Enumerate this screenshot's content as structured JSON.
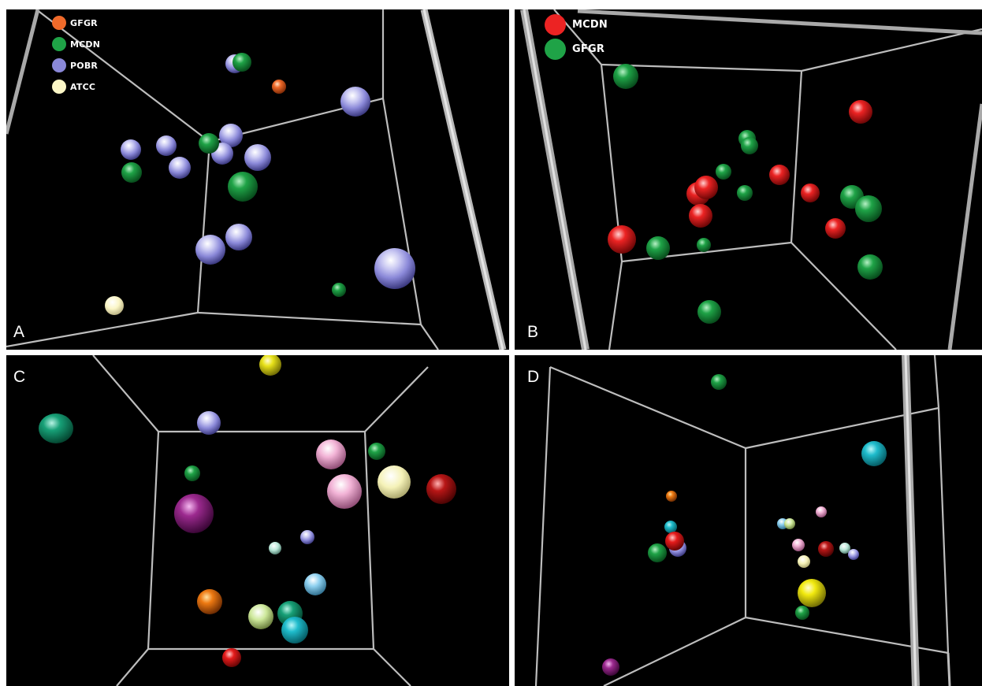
{
  "panels": [
    {
      "label": "A",
      "legend": [
        {
          "label": "GFGR",
          "color": "#ef6a2a"
        },
        {
          "label": "MCDN",
          "color": "#1fa347"
        },
        {
          "label": "POBR",
          "color": "#8a88d8"
        },
        {
          "label": "ATCC",
          "color": "#fbf6c6"
        }
      ]
    },
    {
      "label": "B",
      "legend": [
        {
          "label": "MCDN",
          "color": "#ec2323"
        },
        {
          "label": "GFGR",
          "color": "#1fa347"
        }
      ]
    },
    {
      "label": "C",
      "legend": []
    },
    {
      "label": "D",
      "legend": []
    }
  ]
}
